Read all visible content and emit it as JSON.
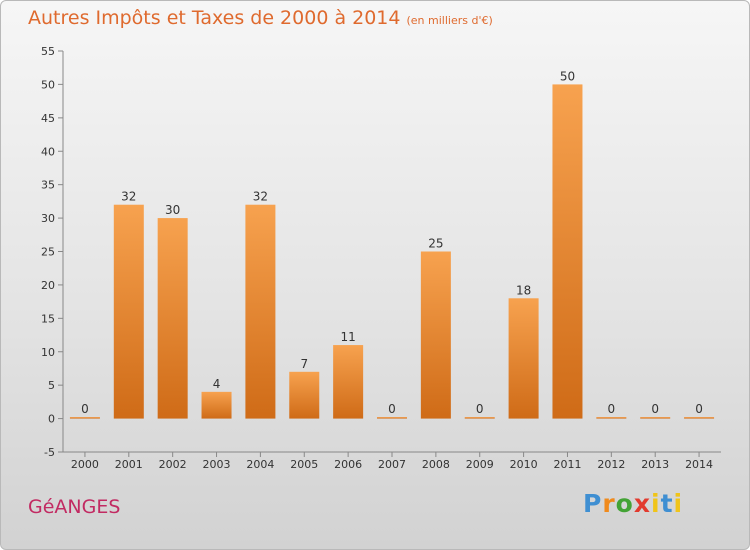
{
  "header": {
    "title": "Autres Impôts et Taxes de 2000 à 2014",
    "unit": "(en milliers d'€)"
  },
  "commune": "GéANGES",
  "brand": {
    "p": "P",
    "r": "r",
    "o": "o",
    "x": "x",
    "i": "i",
    "t": "t",
    "i2": "i"
  },
  "chart_data": {
    "type": "bar",
    "title": "Autres Impôts et Taxes de 2000 à 2014",
    "subtitle": "(en milliers d'€)",
    "xlabel": "",
    "ylabel": "",
    "categories": [
      "2000",
      "2001",
      "2002",
      "2003",
      "2004",
      "2005",
      "2006",
      "2007",
      "2008",
      "2009",
      "2010",
      "2011",
      "2012",
      "2013",
      "2014"
    ],
    "values": [
      0,
      32,
      30,
      4,
      32,
      7,
      11,
      0,
      25,
      0,
      18,
      50,
      0,
      0,
      0
    ],
    "ylim": [
      -5,
      55
    ],
    "yticks": [
      -5,
      0,
      5,
      10,
      15,
      20,
      25,
      30,
      35,
      40,
      45,
      50,
      55
    ],
    "grid": false,
    "bar_color": "#f0892f"
  }
}
